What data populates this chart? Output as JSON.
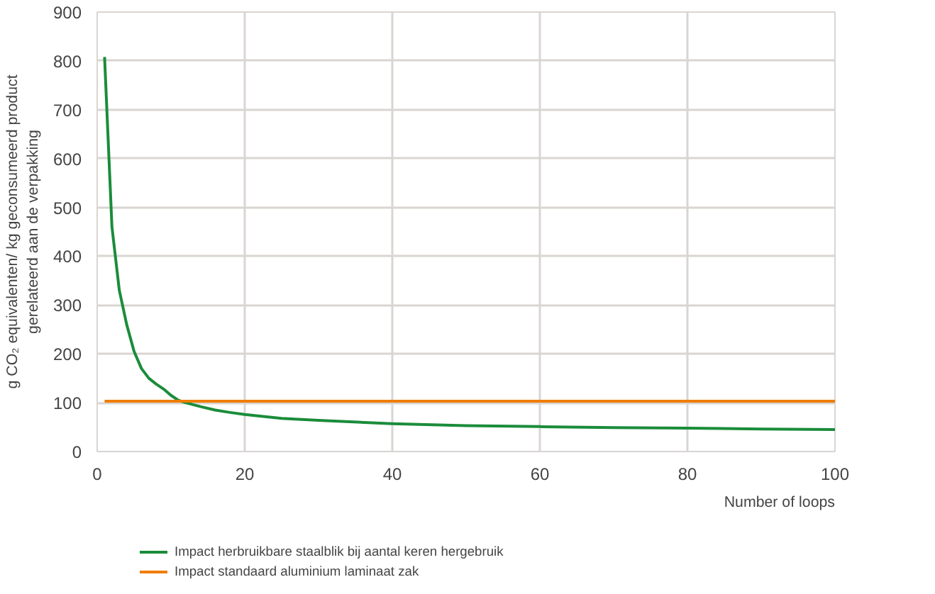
{
  "chart_data": {
    "type": "line",
    "xlabel": "Number of loops",
    "ylabel": "g CO₂ equivalenten/ kg geconsumeerd product\ngerelateerd aan de verpakking",
    "xlim": [
      0,
      100
    ],
    "xticks": [
      0,
      20,
      40,
      60,
      80,
      100
    ],
    "ylim": [
      0,
      900
    ],
    "yticks": [
      0,
      100,
      200,
      300,
      400,
      500,
      600,
      700,
      800,
      900
    ],
    "grid": true,
    "legend": "bottom",
    "series": [
      {
        "name": "Impact herbruikbare staalblik bij aantal keren hergebruik",
        "color": "#1a8c3a",
        "x": [
          1,
          2,
          3,
          4,
          5,
          6,
          7,
          8,
          9,
          10,
          11,
          12,
          14,
          16,
          18,
          20,
          25,
          30,
          40,
          50,
          60,
          70,
          80,
          90,
          100
        ],
        "values": [
          808,
          460,
          330,
          260,
          205,
          170,
          150,
          138,
          128,
          115,
          105,
          100,
          92,
          85,
          80,
          76,
          68,
          64,
          57,
          53,
          51,
          49,
          48,
          46,
          45
        ]
      },
      {
        "name": "Impact standaard aluminium laminaat zak",
        "color": "#f07d00",
        "x": [
          1,
          100
        ],
        "values": [
          103,
          103
        ]
      }
    ]
  }
}
